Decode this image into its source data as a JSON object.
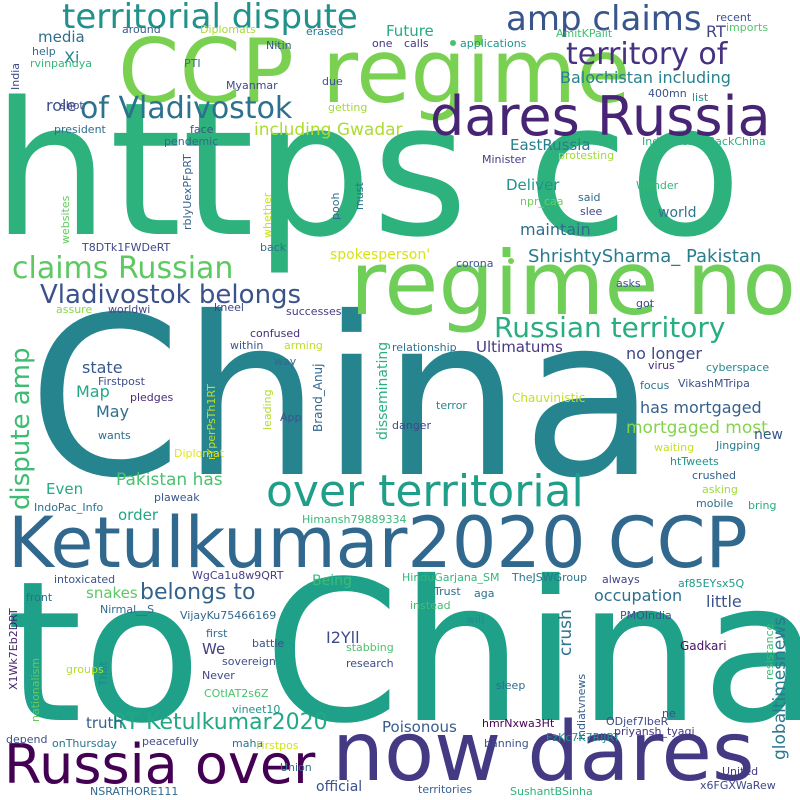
{
  "words": [
    {
      "text": "https co",
      "color": "#2db27d"
    },
    {
      "text": "China",
      "color": "#25848e"
    },
    {
      "text": "to China",
      "color": "#1fa088"
    },
    {
      "text": "CCP regime",
      "color": "#7ad151"
    },
    {
      "text": "regime now",
      "color": "#6ece58"
    },
    {
      "text": "Ketulkumar2020 CCP",
      "color": "#31688e"
    },
    {
      "text": "now dares",
      "color": "#443983"
    },
    {
      "text": "dares Russia",
      "color": "#482475"
    },
    {
      "text": "Russia over",
      "color": "#440154"
    },
    {
      "text": "territorial dispute",
      "color": "#21918c"
    },
    {
      "text": "amp claims",
      "color": "#39568c"
    },
    {
      "text": "over territorial",
      "color": "#1f9e89"
    },
    {
      "text": "territory of",
      "color": "#46327e"
    },
    {
      "text": "of Vladivostok",
      "color": "#2c728e"
    },
    {
      "text": "Vladivostok belongs",
      "color": "#3b528b"
    },
    {
      "text": "claims Russian",
      "color": "#5ec962"
    },
    {
      "text": "Russian territory",
      "color": "#28ae80"
    },
    {
      "text": "dispute amp",
      "color": "#3fbc73"
    },
    {
      "text": "RT Ketulkumar2020",
      "color": "#22a884"
    },
    {
      "text": "belongs to",
      "color": "#33638d"
    },
    {
      "text": "Balochistan including",
      "color": "#26828e"
    },
    {
      "text": "including Gwadar",
      "color": "#addc30"
    },
    {
      "text": "ShrishtySharma_ Pakistan",
      "color": "#287c8e"
    },
    {
      "text": "has mortgaged",
      "color": "#355f8d"
    },
    {
      "text": "mortgaged most",
      "color": "#84d44b"
    },
    {
      "text": "Pakistan has",
      "color": "#4ac16d"
    },
    {
      "text": "globaltimesnews",
      "color": "#2a788e"
    },
    {
      "text": "occupation",
      "color": "#2d708e"
    },
    {
      "text": "no longer",
      "color": "#3e4989"
    },
    {
      "text": "maintain",
      "color": "#2f6c8e"
    },
    {
      "text": "Deliver",
      "color": "#1f948c"
    },
    {
      "text": "EastRussia",
      "color": "#277f8e"
    },
    {
      "text": "Ultimatums",
      "color": "#453882"
    },
    {
      "text": "Future",
      "color": "#25ab82"
    },
    {
      "text": "media",
      "color": "#2e6e8e"
    },
    {
      "text": "role",
      "color": "#3d4d8a"
    },
    {
      "text": "Xi",
      "color": "#24868e"
    },
    {
      "text": "RT",
      "color": "#414487"
    },
    {
      "text": "state",
      "color": "#38598c"
    },
    {
      "text": "Map",
      "color": "#22a785"
    },
    {
      "text": "May",
      "color": "#2e6f8e"
    },
    {
      "text": "order",
      "color": "#21a585"
    },
    {
      "text": "Even",
      "color": "#24aa83"
    },
    {
      "text": "snakes",
      "color": "#5cc863"
    },
    {
      "text": "crush",
      "color": "#2c738e"
    },
    {
      "text": "little",
      "color": "#3a548c"
    },
    {
      "text": "I2Yll",
      "color": "#3e4a89"
    },
    {
      "text": "We",
      "color": "#424186"
    },
    {
      "text": "truth",
      "color": "#34608d"
    },
    {
      "text": "Poisonous",
      "color": "#365c8d"
    },
    {
      "text": "Being",
      "color": "#3dbc74"
    },
    {
      "text": "new",
      "color": "#38588c"
    },
    {
      "text": "world",
      "color": "#2a768e"
    },
    {
      "text": "spokesperson'",
      "color": "#d8e219"
    },
    {
      "text": "official",
      "color": "#3b518b"
    },
    {
      "text": "disseminating",
      "color": "#29af7f"
    },
    {
      "text": "Brand_Anuj",
      "color": "#31678e"
    },
    {
      "text": "Firstpost",
      "color": "#3d4e8a"
    },
    {
      "text": "pledges",
      "color": "#472c7a"
    },
    {
      "text": "VikashMTripa",
      "color": "#3c508b"
    },
    {
      "text": "Chauvinistic",
      "color": "#c2df23"
    },
    {
      "text": "Jingping",
      "color": "#297b8e"
    },
    {
      "text": "cyberspace",
      "color": "#25858e"
    },
    {
      "text": "Gadkari",
      "color": "#471164"
    },
    {
      "text": "PMOIndia",
      "color": "#3b528b"
    },
    {
      "text": "applications",
      "color": "#1f978b"
    },
    {
      "text": "imports",
      "color": "#52c569"
    },
    {
      "text": "recent",
      "color": "#3c4f8a"
    },
    {
      "text": "Diplomats",
      "color": "#a5db36"
    },
    {
      "text": "AmitKPalit",
      "color": "#40bd72"
    },
    {
      "text": "IndiaPushesBackChina",
      "color": "#2ab07f"
    },
    {
      "text": "protesting",
      "color": "#a2da37"
    },
    {
      "text": "Minister",
      "color": "#433e85"
    },
    {
      "text": "Wonder",
      "color": "#35b779"
    },
    {
      "text": "said",
      "color": "#306a8e"
    },
    {
      "text": "slee",
      "color": "#3f4889"
    },
    {
      "text": "npr_caa",
      "color": "#6ccd5a"
    },
    {
      "text": "400mn",
      "color": "#3b518b"
    },
    {
      "text": "list",
      "color": "#218f8d"
    },
    {
      "text": "websites",
      "color": "#63cb5f"
    },
    {
      "text": "whether",
      "color": "#c8e020"
    },
    {
      "text": "pooh",
      "color": "#2e6d8e"
    },
    {
      "text": "must",
      "color": "#2d718e"
    },
    {
      "text": "rbIyUexPFpRT",
      "color": "#34618d"
    },
    {
      "text": "T8DTk1FWDeRT",
      "color": "#3f4788"
    },
    {
      "text": "back",
      "color": "#2e6f8e"
    },
    {
      "text": "corona",
      "color": "#38588c"
    },
    {
      "text": "asks",
      "color": "#3a548c"
    },
    {
      "text": "got",
      "color": "#404688"
    },
    {
      "text": "assure",
      "color": "#8bd646"
    },
    {
      "text": "worldwi",
      "color": "#3e4a89"
    },
    {
      "text": "kneel",
      "color": "#3f4889"
    },
    {
      "text": "successes",
      "color": "#433d84"
    },
    {
      "text": "confused",
      "color": "#472d7b"
    },
    {
      "text": "arming",
      "color": "#bddf26"
    },
    {
      "text": "within",
      "color": "#38588c"
    },
    {
      "text": "way",
      "color": "#306a8e"
    },
    {
      "text": "relationship",
      "color": "#2c718e"
    },
    {
      "text": "virus",
      "color": "#482878"
    },
    {
      "text": "focus",
      "color": "#2a768e"
    },
    {
      "text": "rYperPsTh1RT",
      "color": "#c0df25"
    },
    {
      "text": "leading",
      "color": "#b2dd2d"
    },
    {
      "text": "App",
      "color": "#3b528b"
    },
    {
      "text": "danger",
      "color": "#3f4889"
    },
    {
      "text": "terror",
      "color": "#23898e"
    },
    {
      "text": "waiting",
      "color": "#c5e021"
    },
    {
      "text": "htTweets",
      "color": "#20938c"
    },
    {
      "text": "crushed",
      "color": "#33628d"
    },
    {
      "text": "asking",
      "color": "#9fda3a"
    },
    {
      "text": "mobile",
      "color": "#2e6f8e"
    },
    {
      "text": "bring",
      "color": "#25ac82"
    },
    {
      "text": "wants",
      "color": "#2e6e8e"
    },
    {
      "text": "Diplomat",
      "color": "#e5e419"
    },
    {
      "text": "plaweak",
      "color": "#39568c"
    },
    {
      "text": "IndoPac_Info",
      "color": "#2d708e"
    },
    {
      "text": "Himansh79889334",
      "color": "#38b977"
    },
    {
      "text": "WgCa1u8w9QRT",
      "color": "#423f85"
    },
    {
      "text": "intoxicated",
      "color": "#3b528b"
    },
    {
      "text": "HinduGarjana_SM",
      "color": "#32b67a"
    },
    {
      "text": "TheJSWGroup",
      "color": "#2a778e"
    },
    {
      "text": "always",
      "color": "#414487"
    },
    {
      "text": "af85EYsx5Q",
      "color": "#1f9a8a"
    },
    {
      "text": "X1Wk7Eb2DRT",
      "color": "#482071"
    },
    {
      "text": "front",
      "color": "#2e6e8e"
    },
    {
      "text": "Trust",
      "color": "#306a8e"
    },
    {
      "text": "aga",
      "color": "#2c728e"
    },
    {
      "text": "instead",
      "color": "#42be71"
    },
    {
      "text": "will",
      "color": "#228c8d"
    },
    {
      "text": "Nirmal__S",
      "color": "#2e6e8e"
    },
    {
      "text": "VijayKu75466169",
      "color": "#31688e"
    },
    {
      "text": "first",
      "color": "#2e6d8e"
    },
    {
      "text": "battle",
      "color": "#3b528b"
    },
    {
      "text": "That",
      "color": "#25848e"
    },
    {
      "text": "sovereign",
      "color": "#3c4f8a"
    },
    {
      "text": "Never",
      "color": "#3f4889"
    },
    {
      "text": "stabbing",
      "color": "#4cc26c"
    },
    {
      "text": "research",
      "color": "#3d4d8a"
    },
    {
      "text": "resistance",
      "color": "#3dbc74"
    },
    {
      "text": "indiatvnews",
      "color": "#34608d"
    },
    {
      "text": "nationalism",
      "color": "#66cb5d"
    },
    {
      "text": "groups",
      "color": "#b5de2b"
    },
    {
      "text": "COtIAT2s6Z",
      "color": "#4ac16d"
    },
    {
      "text": "vineet10",
      "color": "#20938c"
    },
    {
      "text": "sleep",
      "color": "#2e6e8e"
    },
    {
      "text": "ne",
      "color": "#3b518b"
    },
    {
      "text": "hmrNxwa3Ht",
      "color": "#440154"
    },
    {
      "text": "ODjef7lbeR",
      "color": "#3e4989"
    },
    {
      "text": "depend",
      "color": "#3c4f8a"
    },
    {
      "text": "onThursday",
      "color": "#2b758e"
    },
    {
      "text": "peacefully",
      "color": "#3e4a89"
    },
    {
      "text": "maha",
      "color": "#2c738e"
    },
    {
      "text": "Firstpos",
      "color": "#d2e21b"
    },
    {
      "text": "banning",
      "color": "#3b518b"
    },
    {
      "text": "FzKc7K7RiJRT",
      "color": "#21918c"
    },
    {
      "text": "priyansh_tyagi_",
      "color": "#453781"
    },
    {
      "text": "United",
      "color": "#443983"
    },
    {
      "text": "x6FGXWaRew",
      "color": "#3e4989"
    },
    {
      "text": "NSRATHORE111",
      "color": "#30698e"
    },
    {
      "text": "Union",
      "color": "#2d708e"
    },
    {
      "text": "territories",
      "color": "#34618d"
    },
    {
      "text": "SushantBSinha",
      "color": "#2db27d"
    },
    {
      "text": "around",
      "color": "#355f8d"
    },
    {
      "text": "erased",
      "color": "#2a778e"
    },
    {
      "text": "one",
      "color": "#453882"
    },
    {
      "text": "calls",
      "color": "#453882"
    },
    {
      "text": "help",
      "color": "#2e6e8e"
    },
    {
      "text": "India",
      "color": "#3e4989"
    },
    {
      "text": "rvinpandya",
      "color": "#35b779"
    },
    {
      "text": "PTI",
      "color": "#2e6e8e"
    },
    {
      "text": "Myanmar",
      "color": "#3f4889"
    },
    {
      "text": "due",
      "color": "#3a548c"
    },
    {
      "text": "getting",
      "color": "#a2da37"
    },
    {
      "text": "shot",
      "color": "#3e4989"
    },
    {
      "text": "president",
      "color": "#2e6e8e"
    },
    {
      "text": "face",
      "color": "#3b528b"
    },
    {
      "text": "pendemic",
      "color": "#30698e"
    },
    {
      "text": "Nitin",
      "color": "#3b528b"
    }
  ]
}
